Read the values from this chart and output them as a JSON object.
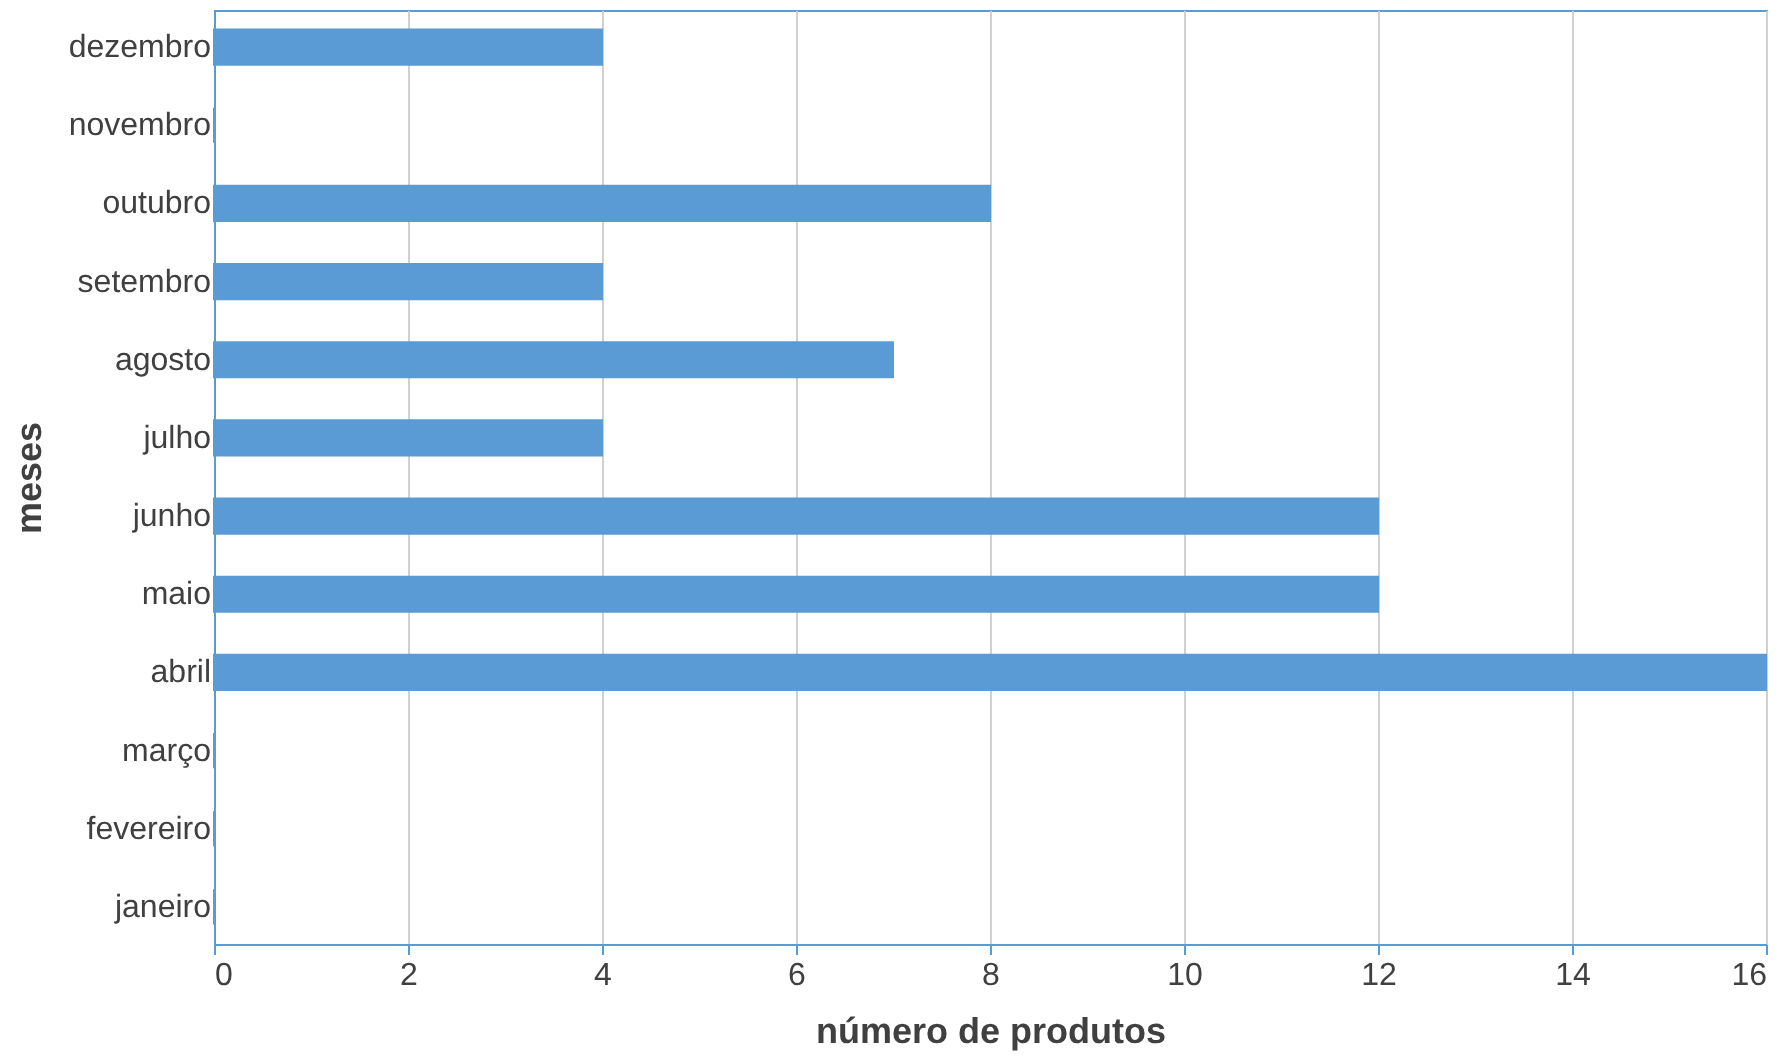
{
  "chart_data": {
    "type": "bar",
    "orientation": "horizontal",
    "xlabel": "número de produtos",
    "ylabel": "meses",
    "categories": [
      "dezembro",
      "novembro",
      "outubro",
      "setembro",
      "agosto",
      "julho",
      "junho",
      "maio",
      "abril",
      "março",
      "fevereiro",
      "janeiro"
    ],
    "values": [
      4,
      0,
      8,
      4,
      7,
      4,
      12,
      12,
      16,
      0,
      0,
      0
    ],
    "color": "#5b9bd5",
    "xlim": [
      0,
      16
    ],
    "xticks": [
      0,
      2,
      4,
      6,
      8,
      10,
      12,
      14,
      16
    ],
    "grid": "x"
  }
}
